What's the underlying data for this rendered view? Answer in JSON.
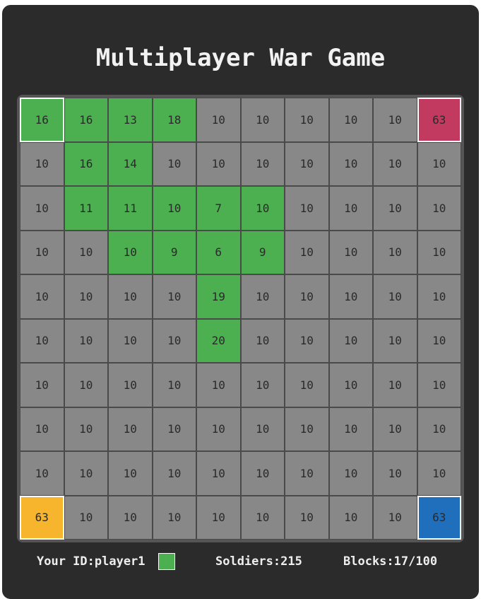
{
  "title": "Multiplayer War Game",
  "colors": {
    "player1": "#4caf50",
    "player2": "#c23a5f",
    "player3": "#f7b52e",
    "player4": "#1f6fbd",
    "neutral": "#888888"
  },
  "board": {
    "owners": [
      [
        "player1",
        "player1",
        "player1",
        "player1",
        "",
        "",
        "",
        "",
        "",
        "player2"
      ],
      [
        "",
        "player1",
        "player1",
        "",
        "",
        "",
        "",
        "",
        "",
        ""
      ],
      [
        "",
        "player1",
        "player1",
        "player1",
        "player1",
        "player1",
        "",
        "",
        "",
        ""
      ],
      [
        "",
        "",
        "player1",
        "player1",
        "player1",
        "player1",
        "",
        "",
        "",
        ""
      ],
      [
        "",
        "",
        "",
        "",
        "player1",
        "",
        "",
        "",
        "",
        ""
      ],
      [
        "",
        "",
        "",
        "",
        "player1",
        "",
        "",
        "",
        "",
        ""
      ],
      [
        "",
        "",
        "",
        "",
        "",
        "",
        "",
        "",
        "",
        ""
      ],
      [
        "",
        "",
        "",
        "",
        "",
        "",
        "",
        "",
        "",
        ""
      ],
      [
        "",
        "",
        "",
        "",
        "",
        "",
        "",
        "",
        "",
        ""
      ],
      [
        "player3",
        "",
        "",
        "",
        "",
        "",
        "",
        "",
        "",
        "player4"
      ]
    ],
    "values": [
      [
        16,
        16,
        13,
        18,
        10,
        10,
        10,
        10,
        10,
        63
      ],
      [
        10,
        16,
        14,
        10,
        10,
        10,
        10,
        10,
        10,
        10
      ],
      [
        10,
        11,
        11,
        10,
        7,
        10,
        10,
        10,
        10,
        10
      ],
      [
        10,
        10,
        10,
        9,
        6,
        9,
        10,
        10,
        10,
        10
      ],
      [
        10,
        10,
        10,
        10,
        19,
        10,
        10,
        10,
        10,
        10
      ],
      [
        10,
        10,
        10,
        10,
        20,
        10,
        10,
        10,
        10,
        10
      ],
      [
        10,
        10,
        10,
        10,
        10,
        10,
        10,
        10,
        10,
        10
      ],
      [
        10,
        10,
        10,
        10,
        10,
        10,
        10,
        10,
        10,
        10
      ],
      [
        10,
        10,
        10,
        10,
        10,
        10,
        10,
        10,
        10,
        10
      ],
      [
        63,
        10,
        10,
        10,
        10,
        10,
        10,
        10,
        10,
        63
      ]
    ],
    "bases": [
      [
        0,
        0
      ],
      [
        0,
        9
      ],
      [
        9,
        0
      ],
      [
        9,
        9
      ]
    ]
  },
  "footer": {
    "id_text": "Your ID:player1",
    "soldiers_text": "Soldiers:215",
    "blocks_text": "Blocks:17/100",
    "player_color": "#4caf50"
  }
}
